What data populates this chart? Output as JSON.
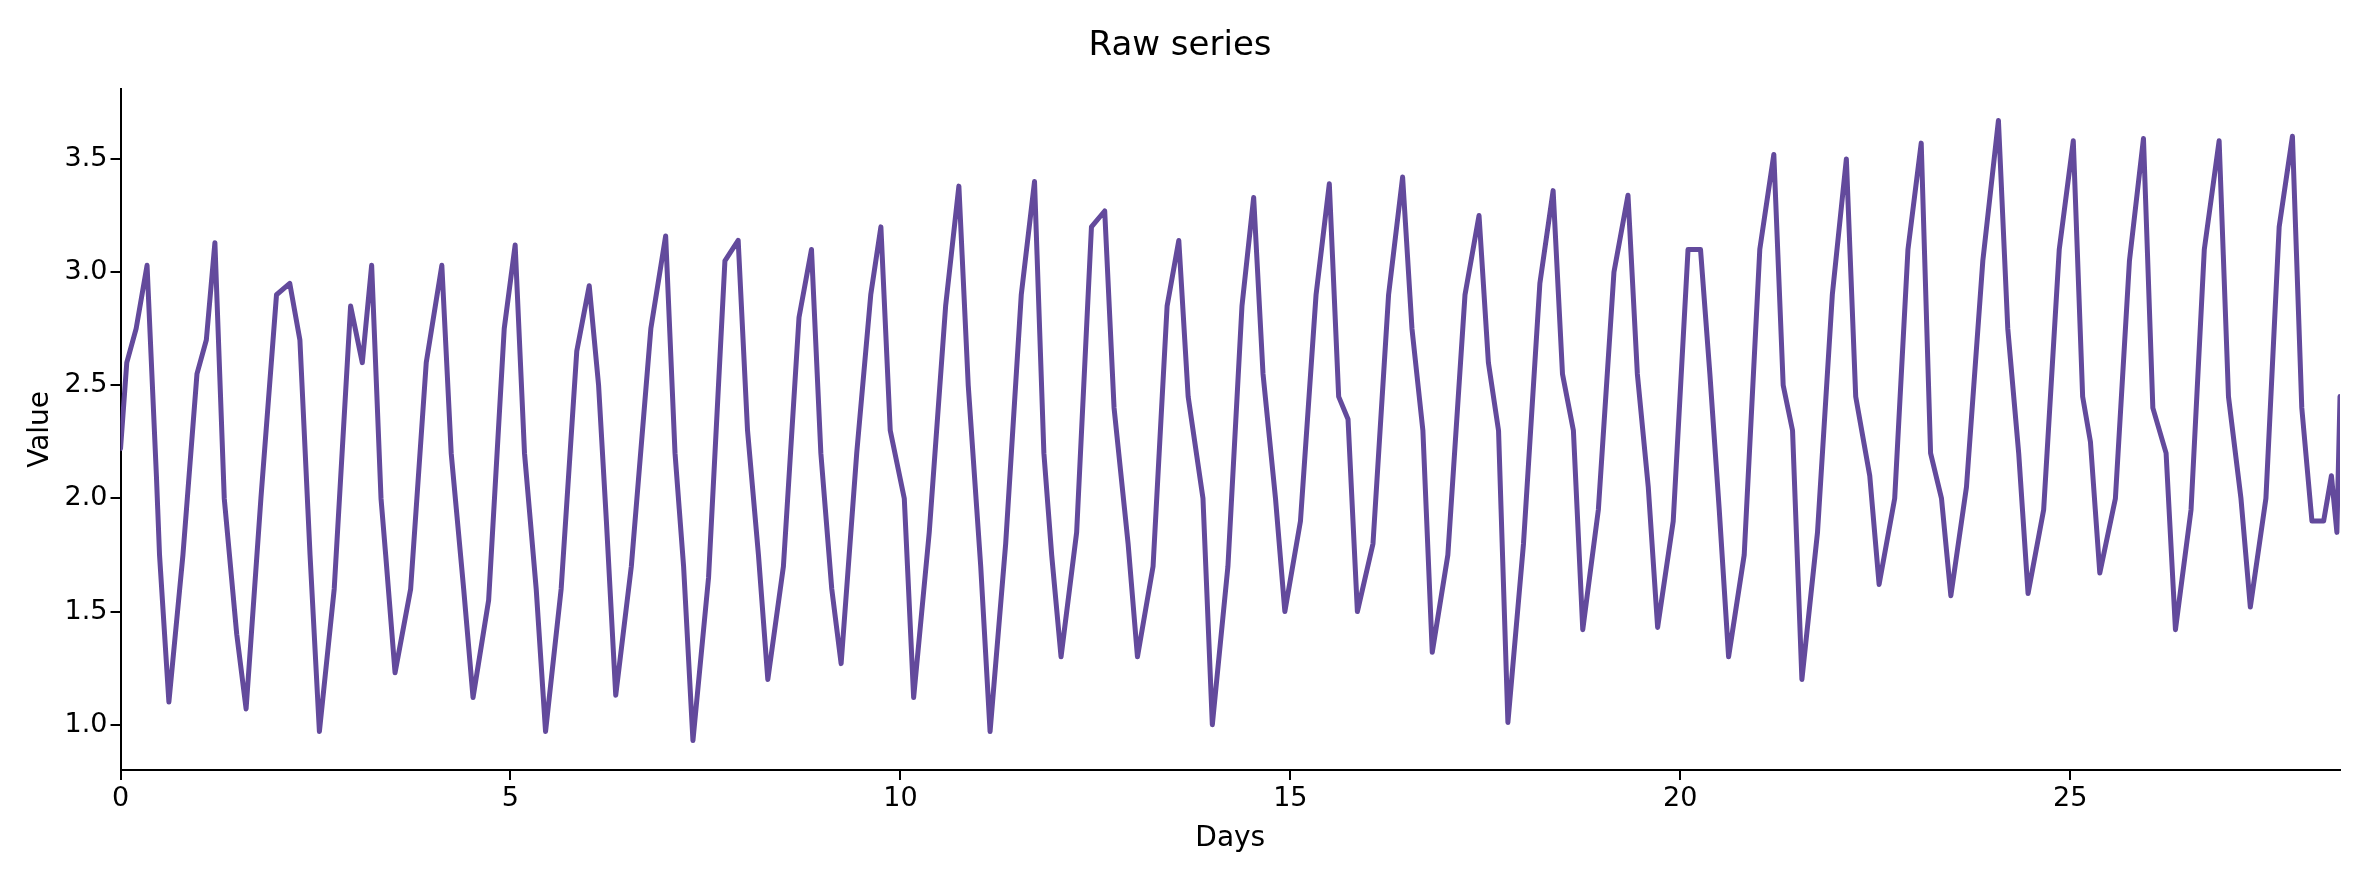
{
  "chart_data": {
    "type": "line",
    "title": "Raw series",
    "xlabel": "Days",
    "ylabel": "Value",
    "xlim": [
      0,
      28.46
    ],
    "xticks": [
      0,
      5,
      10,
      15,
      20,
      25
    ],
    "ylim": [
      0.8,
      3.81
    ],
    "yticks": [
      {
        "value": 1,
        "label": "1.0"
      },
      {
        "value": 1.5,
        "label": "1.5"
      },
      {
        "value": 2,
        "label": "2.0"
      },
      {
        "value": 2.5,
        "label": "2.5"
      },
      {
        "value": 3,
        "label": "3.0"
      },
      {
        "value": 3.5,
        "label": "3.5"
      }
    ],
    "grid": false,
    "legend": false,
    "marker": "none",
    "line_style": "solid",
    "series": [
      {
        "color": "#634a9c",
        "x": [
          0,
          0.08,
          0.2,
          0.34,
          0.46,
          0.5,
          0.62,
          0.8,
          0.98,
          1.1,
          1.21,
          1.33,
          1.49,
          1.61,
          1.8,
          2.0,
          2.17,
          2.3,
          2.43,
          2.55,
          2.74,
          2.95,
          3.1,
          3.22,
          3.34,
          3.4,
          3.52,
          3.72,
          3.92,
          4.12,
          4.24,
          4.4,
          4.52,
          4.72,
          4.92,
          5.06,
          5.18,
          5.33,
          5.45,
          5.65,
          5.85,
          6.01,
          6.13,
          6.23,
          6.35,
          6.55,
          6.8,
          6.99,
          7.11,
          7.22,
          7.34,
          7.54,
          7.75,
          7.92,
          8.04,
          8.18,
          8.3,
          8.5,
          8.7,
          8.86,
          8.98,
          9.12,
          9.24,
          9.44,
          9.62,
          9.75,
          9.87,
          10.05,
          10.17,
          10.37,
          10.58,
          10.75,
          10.87,
          11.03,
          11.15,
          11.35,
          11.55,
          11.72,
          11.84,
          11.94,
          12.06,
          12.26,
          12.45,
          12.62,
          12.74,
          12.92,
          13.04,
          13.24,
          13.42,
          13.57,
          13.69,
          13.88,
          14.0,
          14.2,
          14.38,
          14.53,
          14.65,
          14.81,
          14.93,
          15.13,
          15.33,
          15.5,
          15.62,
          15.74,
          15.86,
          16.06,
          16.26,
          16.44,
          16.56,
          16.7,
          16.82,
          17.02,
          17.24,
          17.42,
          17.54,
          17.67,
          17.79,
          17.99,
          18.2,
          18.37,
          18.49,
          18.63,
          18.75,
          18.95,
          19.15,
          19.33,
          19.45,
          19.59,
          19.71,
          19.91,
          20.1,
          20.26,
          20.38,
          20.5,
          20.62,
          20.82,
          21.02,
          21.2,
          21.32,
          21.44,
          21.56,
          21.76,
          21.95,
          22.13,
          22.25,
          22.43,
          22.55,
          22.75,
          22.92,
          23.09,
          23.21,
          23.35,
          23.47,
          23.67,
          23.88,
          24.08,
          24.2,
          24.34,
          24.46,
          24.66,
          24.86,
          25.04,
          25.16,
          25.26,
          25.38,
          25.58,
          25.76,
          25.94,
          26.06,
          26.23,
          26.35,
          26.55,
          26.72,
          26.91,
          27.03,
          27.19,
          27.31,
          27.51,
          27.68,
          27.85,
          27.97,
          28.1,
          28.25,
          28.35,
          28.42,
          28.46
        ],
        "values": [
          2.22,
          2.6,
          2.75,
          3.03,
          2.1,
          1.75,
          1.1,
          1.75,
          2.55,
          2.7,
          3.13,
          2.0,
          1.4,
          1.07,
          2.0,
          2.9,
          2.95,
          2.7,
          1.75,
          0.97,
          1.6,
          2.85,
          2.6,
          3.03,
          2.0,
          1.75,
          1.23,
          1.6,
          2.6,
          3.03,
          2.2,
          1.6,
          1.12,
          1.55,
          2.75,
          3.12,
          2.2,
          1.6,
          0.97,
          1.6,
          2.65,
          2.94,
          2.5,
          1.9,
          1.13,
          1.7,
          2.75,
          3.16,
          2.2,
          1.7,
          0.93,
          1.65,
          3.05,
          3.14,
          2.3,
          1.75,
          1.2,
          1.7,
          2.8,
          3.1,
          2.2,
          1.6,
          1.27,
          2.2,
          2.9,
          3.2,
          2.3,
          2.0,
          1.12,
          1.85,
          2.85,
          3.38,
          2.5,
          1.7,
          0.97,
          1.8,
          2.9,
          3.4,
          2.2,
          1.75,
          1.3,
          1.85,
          3.2,
          3.27,
          2.4,
          1.8,
          1.3,
          1.7,
          2.85,
          3.14,
          2.45,
          2.0,
          1.0,
          1.7,
          2.85,
          3.33,
          2.55,
          2.0,
          1.5,
          1.9,
          2.9,
          3.39,
          2.45,
          2.35,
          1.5,
          1.8,
          2.9,
          3.42,
          2.75,
          2.3,
          1.32,
          1.75,
          2.9,
          3.25,
          2.6,
          2.3,
          1.01,
          1.8,
          2.95,
          3.36,
          2.55,
          2.3,
          1.42,
          1.95,
          3.0,
          3.34,
          2.55,
          2.05,
          1.43,
          1.9,
          3.1,
          3.1,
          2.55,
          1.95,
          1.3,
          1.75,
          3.1,
          3.52,
          2.5,
          2.3,
          1.2,
          1.85,
          2.9,
          3.5,
          2.45,
          2.1,
          1.62,
          2.0,
          3.1,
          3.57,
          2.2,
          2.0,
          1.57,
          2.05,
          3.05,
          3.67,
          2.75,
          2.2,
          1.58,
          1.95,
          3.1,
          3.58,
          2.45,
          2.25,
          1.67,
          2.0,
          3.05,
          3.59,
          2.4,
          2.2,
          1.42,
          1.95,
          3.1,
          3.58,
          2.45,
          2.0,
          1.52,
          2.0,
          3.2,
          3.6,
          2.4,
          1.9,
          1.9,
          2.1,
          1.85,
          2.45
        ]
      }
    ]
  }
}
